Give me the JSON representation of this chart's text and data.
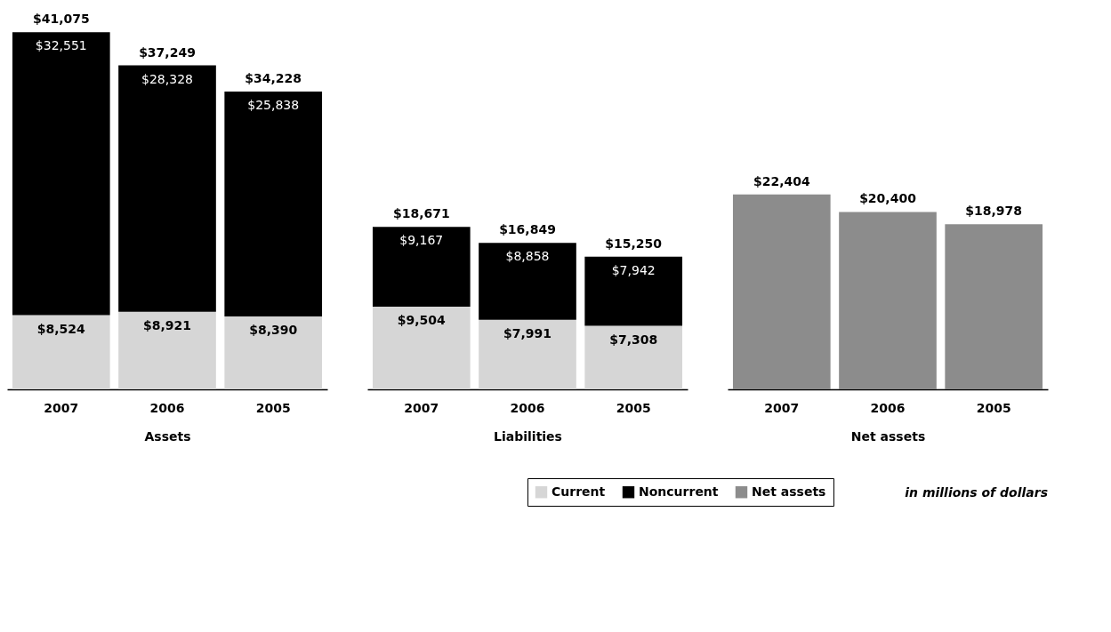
{
  "chart_data": [
    {
      "type": "bar",
      "stacked": true,
      "xlabel": "Assets",
      "categories": [
        "2007",
        "2006",
        "2005"
      ],
      "legend": "bottom right",
      "series": [
        {
          "name": "Current",
          "color": "#d6d6d6",
          "values": [
            8524,
            8921,
            8390
          ],
          "value_labels": [
            "$8,524",
            "$8,921",
            "$8,390"
          ]
        },
        {
          "name": "Noncurrent",
          "color": "#000000",
          "values": [
            32551,
            28328,
            25838
          ],
          "value_labels": [
            "$32,551",
            "$28,328",
            "$25,838"
          ]
        }
      ],
      "totals": [
        "$41,075",
        "$37,249",
        "$34,228"
      ]
    },
    {
      "type": "bar",
      "stacked": true,
      "xlabel": "Liabilities",
      "categories": [
        "2007",
        "2006",
        "2005"
      ],
      "legend": "bottom right",
      "series": [
        {
          "name": "Current",
          "color": "#d6d6d6",
          "values": [
            9504,
            7991,
            7308
          ],
          "value_labels": [
            "$9,504",
            "$7,991",
            "$7,308"
          ]
        },
        {
          "name": "Noncurrent",
          "color": "#000000",
          "values": [
            9167,
            8858,
            7942
          ],
          "value_labels": [
            "$9,167",
            "$8,858",
            "$7,942"
          ]
        }
      ],
      "totals": [
        "$18,671",
        "$16,849",
        "$15,250"
      ]
    },
    {
      "type": "bar",
      "xlabel": "Net assets",
      "categories": [
        "2007",
        "2006",
        "2005"
      ],
      "legend": "bottom left",
      "series": [
        {
          "name": "Net assets",
          "color": "#8c8c8c",
          "values": [
            22404,
            20400,
            18978
          ],
          "value_labels": [
            "$22,404",
            "$20,400",
            "$18,978"
          ]
        }
      ],
      "annotations": [
        "in millions of dollars"
      ]
    }
  ]
}
